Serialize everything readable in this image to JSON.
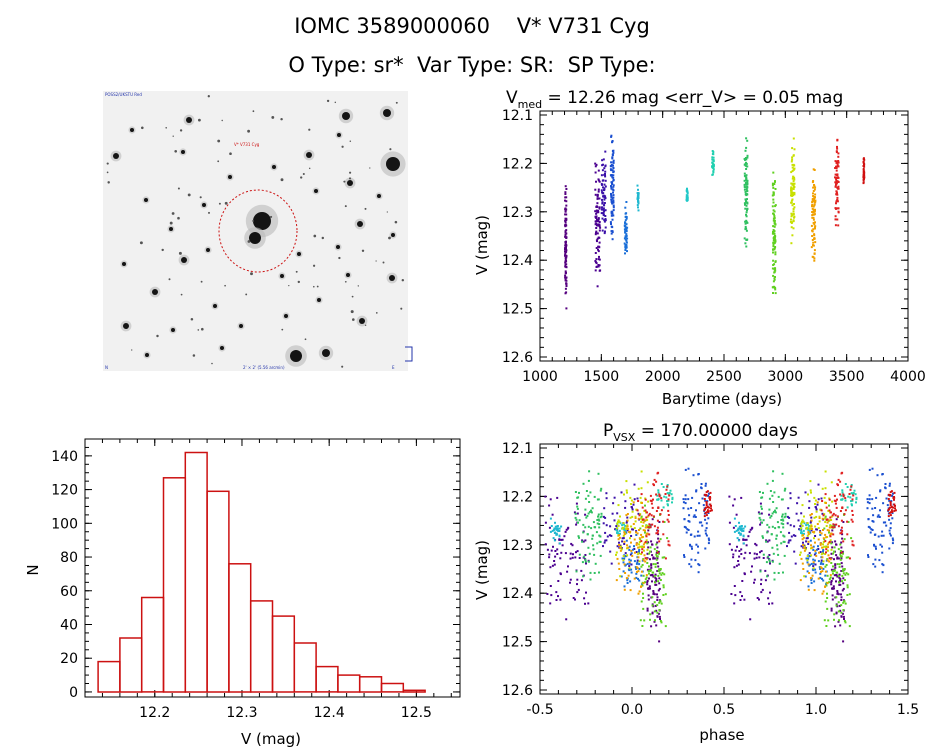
{
  "header": {
    "line1": "IOMC 3589000060    V* V731 Cyg",
    "line2": "O Type: sr*  Var Type: SR:  SP Type:"
  },
  "colors": {
    "hist": "#cc1111",
    "frame": "#000000",
    "ellipse": "#cc1111"
  },
  "image_panel": {
    "labels": {
      "top_left": "POSS2/UKSTU Red",
      "center": "V* V731 Cyg",
      "bottom_left": "N",
      "bottom_center": "2' × 2' (5.56 arcmin)",
      "bottom_right": "E"
    }
  },
  "chart_data": [
    {
      "type": "scatter",
      "title_parts": {
        "v": "V",
        "sub": "med",
        "rest": " = 12.26 mag <err_V> = 0.05 mag"
      },
      "xlabel": "Barytime (days)",
      "ylabel": "V (mag)",
      "xlim": [
        1000,
        4000
      ],
      "ylim": [
        12.6,
        12.1
      ],
      "y_inverted": true,
      "xticks": [
        "1000",
        "1500",
        "2000",
        "2500",
        "3000",
        "3500",
        "4000"
      ],
      "yticks": [
        "12.1",
        "12.2",
        "12.3",
        "12.4",
        "12.5",
        "12.6"
      ],
      "groups": [
        {
          "x": 1210,
          "dx": 12,
          "ylo": 12.23,
          "yhi": 12.51,
          "color": "#55007f"
        },
        {
          "x": 1470,
          "dx": 40,
          "ylo": 12.19,
          "yhi": 12.46,
          "color": "#4b0090"
        },
        {
          "x": 1520,
          "dx": 35,
          "ylo": 12.17,
          "yhi": 12.36,
          "color": "#3a10a8"
        },
        {
          "x": 1590,
          "dx": 25,
          "ylo": 12.13,
          "yhi": 12.38,
          "color": "#1a4fd0"
        },
        {
          "x": 1700,
          "dx": 20,
          "ylo": 12.27,
          "yhi": 12.4,
          "color": "#1a6fd8"
        },
        {
          "x": 1800,
          "dx": 10,
          "ylo": 12.24,
          "yhi": 12.3,
          "color": "#20b8d0"
        },
        {
          "x": 2200,
          "dx": 10,
          "ylo": 12.25,
          "yhi": 12.29,
          "color": "#20c8c8"
        },
        {
          "x": 2410,
          "dx": 15,
          "ylo": 12.17,
          "yhi": 12.23,
          "color": "#20d0b0"
        },
        {
          "x": 2680,
          "dx": 25,
          "ylo": 12.14,
          "yhi": 12.39,
          "color": "#30c060"
        },
        {
          "x": 2910,
          "dx": 25,
          "ylo": 12.21,
          "yhi": 12.49,
          "color": "#60d020"
        },
        {
          "x": 3060,
          "dx": 30,
          "ylo": 12.14,
          "yhi": 12.37,
          "color": "#c8e000"
        },
        {
          "x": 3230,
          "dx": 30,
          "ylo": 12.19,
          "yhi": 12.41,
          "color": "#f0a000"
        },
        {
          "x": 3420,
          "dx": 30,
          "ylo": 12.14,
          "yhi": 12.34,
          "color": "#e02020"
        },
        {
          "x": 3640,
          "dx": 8,
          "ylo": 12.18,
          "yhi": 12.25,
          "color": "#d01010"
        }
      ]
    },
    {
      "type": "bar",
      "xlabel": "V (mag)",
      "ylabel": "N",
      "xlim": [
        12.12,
        12.55
      ],
      "ylim": [
        -3,
        150
      ],
      "xticks": [
        "12.2",
        "12.3",
        "12.4",
        "12.5"
      ],
      "yticks": [
        "0",
        "20",
        "40",
        "60",
        "80",
        "100",
        "120",
        "140"
      ],
      "bin_start": 12.135,
      "bin_width": 0.025,
      "values": [
        18,
        32,
        56,
        127,
        142,
        119,
        76,
        54,
        45,
        29,
        15,
        10,
        9,
        5,
        1
      ]
    },
    {
      "type": "scatter",
      "title_parts": {
        "v": "P",
        "sub": "VSX",
        "rest": " = 170.00000 days"
      },
      "xlabel": "phase",
      "ylabel": "V (mag)",
      "xlim": [
        -0.5,
        1.5
      ],
      "ylim": [
        12.6,
        12.1
      ],
      "y_inverted": true,
      "xticks": [
        "-0.5",
        "0.0",
        "0.5",
        "1.0",
        "1.5"
      ],
      "yticks": [
        "12.1",
        "12.2",
        "12.3",
        "12.4",
        "12.5",
        "12.6"
      ],
      "period_days": 170,
      "groups_ref": 0
    }
  ]
}
